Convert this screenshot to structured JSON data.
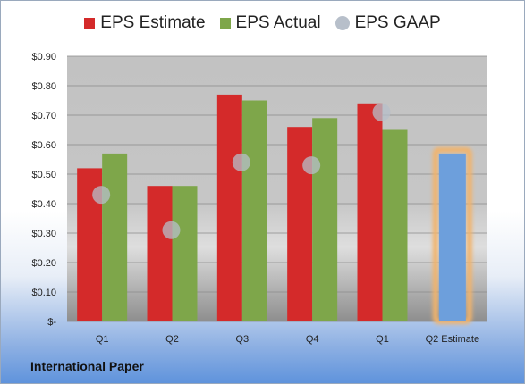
{
  "chart_data": {
    "type": "bar",
    "categories": [
      "Q1",
      "Q2",
      "Q3",
      "Q4",
      "Q1",
      "Q2 Estimate"
    ],
    "series": [
      {
        "name": "EPS Estimate",
        "values": [
          0.52,
          0.46,
          0.77,
          0.66,
          0.74,
          null
        ],
        "color": "#d42a2a"
      },
      {
        "name": "EPS Actual",
        "values": [
          0.57,
          0.46,
          0.75,
          0.69,
          0.65,
          null
        ],
        "color": "#7ea64a"
      },
      {
        "name": "EPS GAAP",
        "values": [
          0.43,
          0.31,
          0.54,
          0.53,
          0.71,
          null
        ],
        "color": "#b7bfca"
      }
    ],
    "estimate_bar": {
      "category": "Q2 Estimate",
      "value": 0.57,
      "color": "#6d9fdc",
      "highlight": "#f2b36b"
    },
    "yticks": [
      "$-",
      "$0.10",
      "$0.20",
      "$0.30",
      "$0.40",
      "$0.50",
      "$0.60",
      "$0.70",
      "$0.80",
      "$0.90"
    ],
    "ylim": [
      0,
      0.9
    ],
    "grid": true,
    "legend_position": "top",
    "title": "",
    "xlabel": "",
    "ylabel": ""
  },
  "footer_title": "International Paper"
}
